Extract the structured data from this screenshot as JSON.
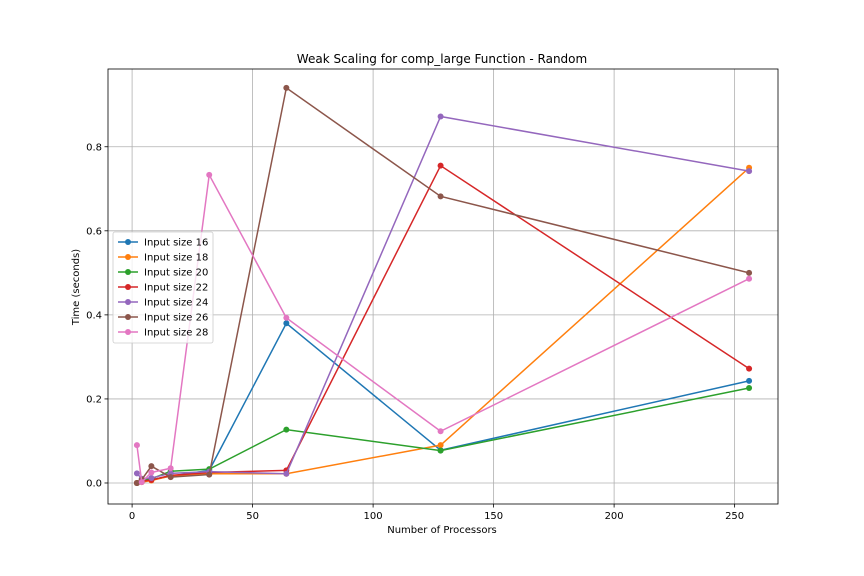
{
  "chart_data": {
    "type": "line",
    "title": "Weak Scaling for comp_large Function - Random",
    "xlabel": "Number of Processors",
    "ylabel": "Time (seconds)",
    "xlim": [
      -10,
      268
    ],
    "ylim": [
      -0.05,
      0.985
    ],
    "xticks": [
      0,
      50,
      100,
      150,
      200,
      250
    ],
    "yticks": [
      0.0,
      0.2,
      0.4,
      0.6,
      0.8
    ],
    "grid": true,
    "legend_position": "center-left",
    "x": [
      2,
      4,
      8,
      16,
      32,
      64,
      128,
      256
    ],
    "series": [
      {
        "name": "Input size 16",
        "color": "#1f77b4",
        "values": [
          0.0,
          0.003,
          0.008,
          0.016,
          0.03,
          0.38,
          0.078,
          0.243
        ]
      },
      {
        "name": "Input size 18",
        "color": "#ff7f0e",
        "values": [
          0.0,
          0.002,
          0.006,
          0.017,
          0.022,
          0.022,
          0.09,
          0.75
        ]
      },
      {
        "name": "Input size 20",
        "color": "#2ca02c",
        "values": [
          0.0,
          0.005,
          0.01,
          0.028,
          0.033,
          0.127,
          0.077,
          0.226
        ]
      },
      {
        "name": "Input size 22",
        "color": "#d62728",
        "values": [
          0.0,
          0.004,
          0.007,
          0.018,
          0.025,
          0.03,
          0.755,
          0.272
        ]
      },
      {
        "name": "Input size 24",
        "color": "#9467bd",
        "values": [
          0.023,
          0.01,
          0.012,
          0.023,
          0.027,
          0.022,
          0.872,
          0.742
        ]
      },
      {
        "name": "Input size 26",
        "color": "#8c564b",
        "values": [
          0.0,
          0.008,
          0.04,
          0.014,
          0.02,
          0.94,
          0.682,
          0.5
        ]
      },
      {
        "name": "Input size 28",
        "color": "#e377c2",
        "values": [
          0.09,
          0.002,
          0.025,
          0.035,
          0.733,
          0.393,
          0.123,
          0.486
        ]
      }
    ]
  }
}
